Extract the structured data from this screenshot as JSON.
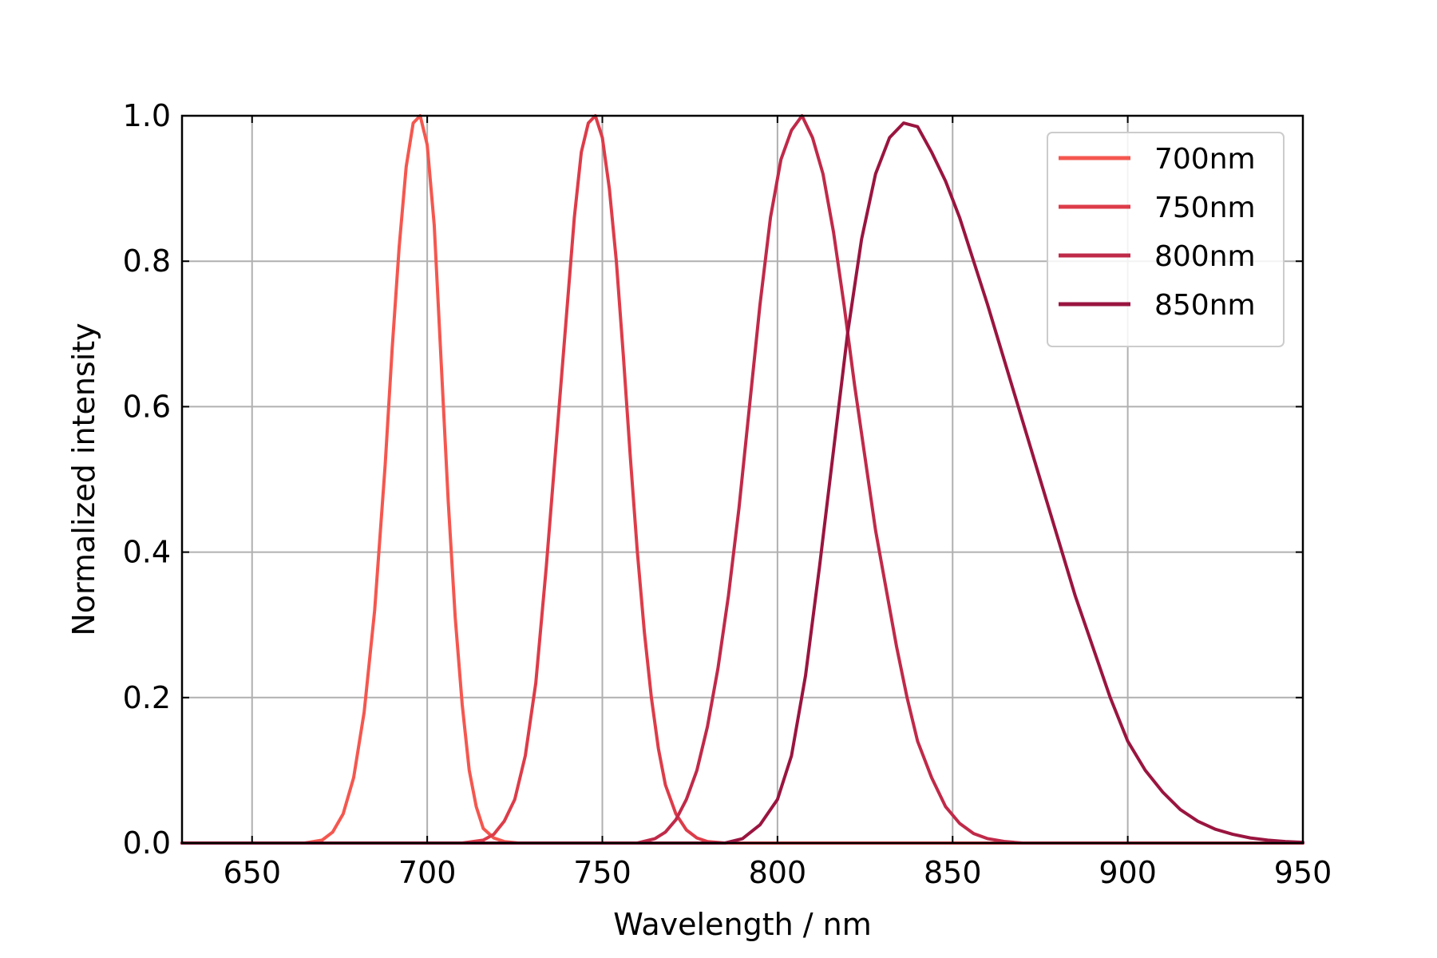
{
  "chart_data": {
    "type": "line",
    "title": "",
    "xlabel": "Wavelength / nm",
    "ylabel": "Normalized intensity",
    "xlim": [
      630,
      950
    ],
    "ylim": [
      0.0,
      1.0
    ],
    "xticks": [
      650,
      700,
      750,
      800,
      850,
      900,
      950
    ],
    "yticks": [
      0.0,
      0.2,
      0.4,
      0.6,
      0.8,
      1.0
    ],
    "xtick_labels": [
      "650",
      "700",
      "750",
      "800",
      "850",
      "900",
      "950"
    ],
    "ytick_labels": [
      "0.0",
      "0.2",
      "0.4",
      "0.6",
      "0.8",
      "1.0"
    ],
    "grid": true,
    "legend_position": "top-right",
    "series": [
      {
        "name": "700nm",
        "color": "#f4574f",
        "x": [
          630,
          665,
          670,
          673,
          676,
          679,
          682,
          685,
          688,
          690,
          692,
          694,
          696,
          698,
          700,
          702,
          704,
          706,
          708,
          710,
          712,
          714,
          716,
          719,
          722,
          726,
          730,
          950
        ],
        "y": [
          0.0,
          0.0,
          0.004,
          0.015,
          0.04,
          0.09,
          0.18,
          0.32,
          0.52,
          0.68,
          0.82,
          0.93,
          0.99,
          1.0,
          0.96,
          0.85,
          0.66,
          0.47,
          0.31,
          0.19,
          0.1,
          0.05,
          0.02,
          0.007,
          0.002,
          0.0,
          0.0,
          0.0
        ]
      },
      {
        "name": "750nm",
        "color": "#dd3c49",
        "x": [
          630,
          710,
          716,
          719,
          722,
          725,
          728,
          731,
          734,
          737,
          740,
          742,
          744,
          746,
          748,
          750,
          752,
          754,
          756,
          758,
          760,
          762,
          764,
          766,
          768,
          771,
          774,
          777,
          780,
          785,
          790,
          950
        ],
        "y": [
          0.0,
          0.0,
          0.004,
          0.012,
          0.03,
          0.06,
          0.12,
          0.22,
          0.38,
          0.56,
          0.74,
          0.86,
          0.95,
          0.99,
          1.0,
          0.97,
          0.9,
          0.8,
          0.67,
          0.53,
          0.4,
          0.29,
          0.2,
          0.13,
          0.08,
          0.04,
          0.018,
          0.007,
          0.002,
          0.0,
          0.0,
          0.0
        ]
      },
      {
        "name": "800nm",
        "color": "#c02a49",
        "x": [
          630,
          760,
          765,
          768,
          771,
          774,
          777,
          780,
          783,
          786,
          789,
          792,
          795,
          798,
          801,
          804,
          807,
          810,
          813,
          816,
          819,
          822,
          825,
          828,
          831,
          834,
          837,
          840,
          844,
          848,
          852,
          856,
          860,
          865,
          870,
          880,
          950
        ],
        "y": [
          0.0,
          0.0,
          0.006,
          0.015,
          0.032,
          0.06,
          0.1,
          0.16,
          0.24,
          0.34,
          0.46,
          0.6,
          0.74,
          0.86,
          0.94,
          0.98,
          1.0,
          0.97,
          0.92,
          0.84,
          0.74,
          0.63,
          0.53,
          0.43,
          0.35,
          0.27,
          0.2,
          0.14,
          0.09,
          0.05,
          0.027,
          0.013,
          0.006,
          0.002,
          0.0,
          0.0,
          0.0
        ]
      },
      {
        "name": "850nm",
        "color": "#9a1540",
        "x": [
          630,
          785,
          790,
          795,
          800,
          804,
          808,
          812,
          816,
          820,
          824,
          828,
          832,
          836,
          840,
          844,
          848,
          852,
          856,
          860,
          865,
          870,
          875,
          880,
          885,
          890,
          895,
          900,
          905,
          910,
          915,
          920,
          925,
          930,
          935,
          940,
          945,
          950
        ],
        "y": [
          0.0,
          0.0,
          0.006,
          0.025,
          0.06,
          0.12,
          0.23,
          0.38,
          0.54,
          0.7,
          0.83,
          0.92,
          0.97,
          0.99,
          0.985,
          0.95,
          0.91,
          0.86,
          0.8,
          0.74,
          0.66,
          0.58,
          0.5,
          0.42,
          0.34,
          0.27,
          0.2,
          0.14,
          0.1,
          0.07,
          0.046,
          0.03,
          0.019,
          0.012,
          0.007,
          0.004,
          0.002,
          0.001
        ]
      }
    ]
  }
}
